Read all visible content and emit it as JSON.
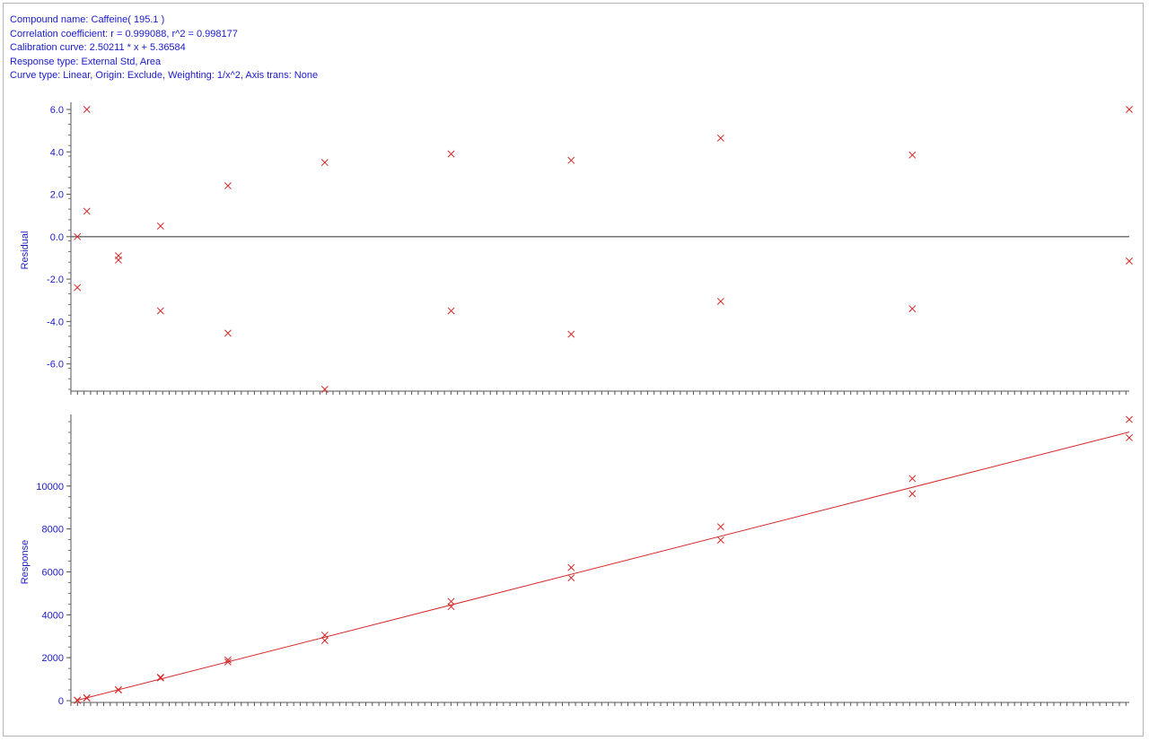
{
  "header": {
    "compound": "Compound name: Caffeine( 195.1 )",
    "correlation": "Correlation coefficient: r = 0.999088, r^2 = 0.998177",
    "calibration": "Calibration curve: 2.50211 * x + 5.36584",
    "response_type": "Response type: External Std, Area",
    "curve_type": "Curve type: Linear, Origin: Exclude, Weighting: 1/x^2, Axis trans: None"
  },
  "colors": {
    "text": "#1a1acc",
    "marker": "#d62828",
    "axis": "#555555"
  },
  "chart_data": [
    {
      "type": "scatter",
      "ylabel": "Residual",
      "ylim": [
        -7.2,
        6.0
      ],
      "xlim": [
        0,
        5000
      ],
      "y_ticks": [
        "6.0",
        "4.0",
        "2.0",
        "0.0",
        "-2.0",
        "-4.0",
        "-6.0"
      ],
      "y_tick_values": [
        6,
        4,
        2,
        0,
        -2,
        -4,
        -6
      ],
      "zero_line": true,
      "series": [
        {
          "points": [
            {
              "x": 5,
              "y": 0.0
            },
            {
              "x": 5,
              "y": -2.4
            },
            {
              "x": 50,
              "y": 6.0
            },
            {
              "x": 50,
              "y": 1.2
            },
            {
              "x": 200,
              "y": -0.9
            },
            {
              "x": 200,
              "y": -1.1
            },
            {
              "x": 400,
              "y": 0.5
            },
            {
              "x": 400,
              "y": -3.5
            },
            {
              "x": 720,
              "y": 2.4
            },
            {
              "x": 720,
              "y": -4.55
            },
            {
              "x": 1180,
              "y": 3.5
            },
            {
              "x": 1180,
              "y": -7.2
            },
            {
              "x": 1780,
              "y": 3.9
            },
            {
              "x": 1780,
              "y": -3.5
            },
            {
              "x": 2350,
              "y": 3.6
            },
            {
              "x": 2350,
              "y": -4.6
            },
            {
              "x": 3060,
              "y": 4.65
            },
            {
              "x": 3060,
              "y": -3.05
            },
            {
              "x": 3970,
              "y": 3.85
            },
            {
              "x": 3970,
              "y": -3.4
            },
            {
              "x": 5000,
              "y": 6.0
            },
            {
              "x": 5000,
              "y": -1.15
            }
          ]
        }
      ]
    },
    {
      "type": "scatter",
      "ylabel": "Response",
      "ylim": [
        0,
        13000
      ],
      "xlim": [
        0,
        5000
      ],
      "y_ticks": [
        "0",
        "2000",
        "4000",
        "6000",
        "8000",
        "10000"
      ],
      "y_tick_values": [
        0,
        2000,
        4000,
        6000,
        8000,
        10000
      ],
      "fit_line": {
        "slope": 2.50211,
        "intercept": 5.36584
      },
      "series": [
        {
          "points": [
            {
              "x": 5,
              "y": 25
            },
            {
              "x": 5,
              "y": 10
            },
            {
              "x": 50,
              "y": 135
            },
            {
              "x": 50,
              "y": 120
            },
            {
              "x": 200,
              "y": 510
            },
            {
              "x": 200,
              "y": 495
            },
            {
              "x": 400,
              "y": 1090
            },
            {
              "x": 400,
              "y": 1060
            },
            {
              "x": 720,
              "y": 1900
            },
            {
              "x": 720,
              "y": 1800
            },
            {
              "x": 1180,
              "y": 3050
            },
            {
              "x": 1180,
              "y": 2800
            },
            {
              "x": 1780,
              "y": 4620
            },
            {
              "x": 1780,
              "y": 4380
            },
            {
              "x": 2350,
              "y": 6200
            },
            {
              "x": 2350,
              "y": 5720
            },
            {
              "x": 3060,
              "y": 8100
            },
            {
              "x": 3060,
              "y": 7480
            },
            {
              "x": 3970,
              "y": 10350
            },
            {
              "x": 3970,
              "y": 9640
            },
            {
              "x": 5000,
              "y": 13100
            },
            {
              "x": 5000,
              "y": 12250
            }
          ]
        }
      ]
    }
  ]
}
